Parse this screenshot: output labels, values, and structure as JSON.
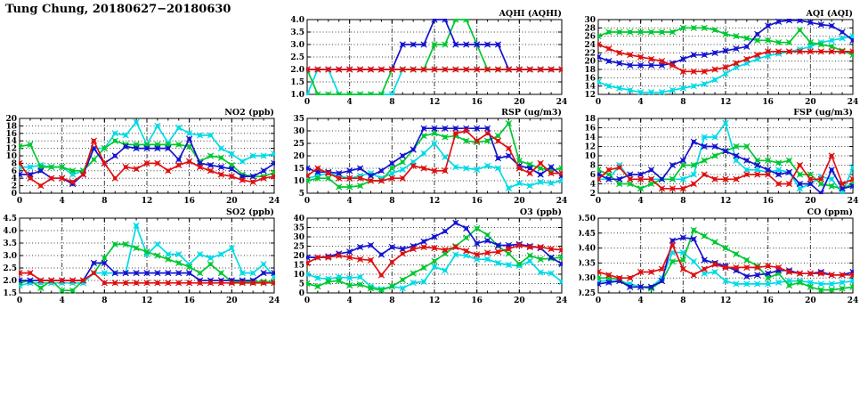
{
  "title": "Tung Chung, 20180627−20180630",
  "colors": {
    "red": "#e01010",
    "blue": "#1515cf",
    "green": "#00c832",
    "cyan": "#00dce6",
    "grid": "#404040",
    "frame": "#000000"
  },
  "hours": [
    0,
    1,
    2,
    3,
    4,
    5,
    6,
    7,
    8,
    9,
    10,
    11,
    12,
    13,
    14,
    15,
    16,
    17,
    18,
    19,
    20,
    21,
    22,
    23,
    24
  ],
  "chart_data": [
    {
      "type": "line",
      "title": "AQHI (AQHI)",
      "grid_position": {
        "row": 0,
        "col": 1
      },
      "xlim": [
        0,
        24
      ],
      "xticks": [
        0,
        4,
        8,
        12,
        16,
        20,
        24
      ],
      "x_minor_step": 1,
      "ylim": [
        1,
        4
      ],
      "ytick_step": 0.5,
      "ydecimals": 1,
      "grid": true,
      "series": [
        {
          "color": "cyan",
          "values": [
            1,
            2,
            2,
            1,
            1,
            1,
            1,
            1,
            1,
            2,
            2,
            2,
            2,
            2,
            2,
            2,
            2,
            2,
            2,
            2,
            2,
            2,
            2,
            2,
            2
          ]
        },
        {
          "color": "green",
          "values": [
            2,
            1,
            1,
            1,
            1,
            1,
            1,
            1,
            2,
            2,
            2,
            2,
            3,
            3,
            4,
            4,
            3,
            2,
            2,
            2,
            2,
            2,
            2,
            2,
            2
          ]
        },
        {
          "color": "blue",
          "values": [
            2,
            2,
            2,
            2,
            2,
            2,
            2,
            2,
            2,
            3,
            3,
            3,
            4,
            4,
            3,
            3,
            3,
            3,
            3,
            2,
            2,
            2,
            2,
            2,
            2
          ]
        },
        {
          "color": "red",
          "values": [
            2,
            2,
            2,
            2,
            2,
            2,
            2,
            2,
            2,
            2,
            2,
            2,
            2,
            2,
            2,
            2,
            2,
            2,
            2,
            2,
            2,
            2,
            2,
            2,
            2
          ]
        }
      ]
    },
    {
      "type": "line",
      "title": "AQI (AQI)",
      "grid_position": {
        "row": 0,
        "col": 2
      },
      "xlim": [
        0,
        24
      ],
      "xticks": [
        0,
        4,
        8,
        12,
        16,
        20,
        24
      ],
      "x_minor_step": 1,
      "ylim": [
        12,
        30
      ],
      "ytick_step": 2,
      "ydecimals": 0,
      "grid": true,
      "series": [
        {
          "color": "cyan",
          "values": [
            15,
            14,
            13.5,
            13,
            12.5,
            12.5,
            12.5,
            13,
            13.5,
            14,
            14.5,
            15.5,
            17,
            18.5,
            19.5,
            20.5,
            21.3,
            21.8,
            22.3,
            22.8,
            23.5,
            24.5,
            25,
            25.5,
            26
          ]
        },
        {
          "color": "green",
          "values": [
            26,
            27,
            27,
            27,
            27,
            27,
            27,
            27,
            28,
            28,
            28,
            27.5,
            26.5,
            26,
            25.5,
            25,
            25,
            24.5,
            24.5,
            27.5,
            24.5,
            24,
            23.5,
            22.5,
            21.5
          ]
        },
        {
          "color": "blue",
          "values": [
            21,
            20,
            19.5,
            19,
            19,
            19,
            19,
            19.5,
            20.5,
            21.5,
            21.5,
            22,
            22.5,
            23,
            23.5,
            26.5,
            28.5,
            29.5,
            29.8,
            29.8,
            29.3,
            28.8,
            28.5,
            27,
            25
          ]
        },
        {
          "color": "red",
          "values": [
            24,
            23,
            22,
            21.5,
            21,
            20.5,
            20,
            19,
            17.5,
            17.5,
            17.5,
            18,
            18.5,
            19.5,
            20.5,
            21.5,
            22.3,
            22.3,
            22.3,
            22.3,
            22.3,
            22.3,
            22.3,
            22.3,
            22.3
          ]
        }
      ]
    },
    {
      "type": "line",
      "title": "NO2 (ppb)",
      "grid_position": {
        "row": 1,
        "col": 0
      },
      "xlim": [
        0,
        24
      ],
      "xticks": [
        0,
        4,
        8,
        12,
        16,
        20,
        24
      ],
      "x_minor_step": 1,
      "ylim": [
        0,
        20
      ],
      "ytick_step": 2,
      "ydecimals": 0,
      "grid": true,
      "series": [
        {
          "color": "cyan",
          "values": [
            7,
            7,
            7.5,
            7,
            7,
            5,
            6,
            12,
            12,
            16,
            15.5,
            19,
            13,
            18,
            13.5,
            17.5,
            16,
            15.5,
            15.5,
            12,
            10.5,
            8.5,
            10,
            10,
            10.5
          ]
        },
        {
          "color": "green",
          "values": [
            12.5,
            13,
            7,
            7,
            7,
            6,
            6,
            9,
            12,
            14,
            13,
            13,
            13,
            13,
            13,
            13,
            12.5,
            8.5,
            10,
            9.5,
            7.5,
            5,
            4.5,
            4.5,
            5.5
          ]
        },
        {
          "color": "blue",
          "values": [
            5,
            5,
            6,
            4,
            4,
            2.5,
            5,
            12,
            8,
            10,
            12.5,
            12,
            12,
            12,
            12,
            9,
            14.5,
            8,
            7.5,
            7,
            6.5,
            4.5,
            4.5,
            6,
            8
          ]
        },
        {
          "color": "red",
          "values": [
            8,
            4,
            2,
            4,
            4,
            3,
            5,
            14,
            8,
            4,
            7,
            6.5,
            8,
            8,
            6,
            7.5,
            8.5,
            7,
            6,
            5,
            4.5,
            3.5,
            3,
            4,
            4.5
          ]
        }
      ]
    },
    {
      "type": "line",
      "title": "RSP (ug/m3)",
      "grid_position": {
        "row": 1,
        "col": 1
      },
      "xlim": [
        0,
        24
      ],
      "xticks": [
        0,
        4,
        8,
        12,
        16,
        20,
        24
      ],
      "x_minor_step": 1,
      "ylim": [
        5,
        35
      ],
      "ytick_step": 5,
      "ydecimals": 0,
      "grid": true,
      "series": [
        {
          "color": "cyan",
          "values": [
            11,
            12,
            13,
            12,
            11,
            12,
            13,
            11,
            13,
            14.5,
            17.5,
            21,
            25,
            19.5,
            15.5,
            15,
            14.5,
            16,
            15,
            7,
            9,
            8,
            9.5,
            9,
            10
          ]
        },
        {
          "color": "green",
          "values": [
            10,
            11,
            11,
            7.5,
            7.5,
            8,
            10,
            10,
            15,
            17.5,
            22.5,
            28,
            29,
            27.5,
            28,
            26,
            25.5,
            26,
            28,
            33,
            18,
            16.5,
            15,
            14,
            15
          ]
        },
        {
          "color": "blue",
          "values": [
            15,
            13.5,
            13.5,
            13,
            14,
            15,
            12,
            14,
            17,
            20,
            22.5,
            31,
            31,
            31,
            31,
            31,
            31,
            31,
            19,
            20,
            16,
            15,
            12.5,
            15.5,
            12
          ]
        },
        {
          "color": "red",
          "values": [
            12,
            15,
            13,
            11,
            11,
            11,
            10,
            10,
            11,
            11,
            16,
            15,
            14,
            14,
            29,
            30,
            26,
            29,
            26,
            23,
            15,
            13,
            17,
            13,
            13
          ]
        }
      ]
    },
    {
      "type": "line",
      "title": "FSP (ug/m3)",
      "grid_position": {
        "row": 1,
        "col": 2
      },
      "xlim": [
        0,
        24
      ],
      "xticks": [
        0,
        4,
        8,
        12,
        16,
        20,
        24
      ],
      "x_minor_step": 1,
      "ylim": [
        2,
        18
      ],
      "ytick_step": 2,
      "ydecimals": 0,
      "grid": true,
      "series": [
        {
          "color": "cyan",
          "values": [
            5,
            5,
            8,
            5,
            5,
            5,
            5,
            5,
            5,
            6,
            14,
            14,
            17,
            9,
            7,
            7,
            6.5,
            7,
            6.5,
            3,
            4,
            5.5,
            5,
            2,
            7.5
          ]
        },
        {
          "color": "green",
          "values": [
            7,
            6,
            4,
            4,
            3,
            4,
            5,
            5,
            8,
            8,
            9,
            10,
            11,
            12,
            12,
            9,
            9,
            8.5,
            9,
            6,
            6,
            4,
            3.5,
            3,
            4
          ]
        },
        {
          "color": "blue",
          "values": [
            6,
            5,
            5,
            6,
            6,
            7,
            5,
            8,
            9,
            13,
            12,
            12,
            11,
            10,
            9,
            8,
            7,
            6,
            6.5,
            4,
            4,
            2,
            7,
            3,
            3.5
          ]
        },
        {
          "color": "red",
          "values": [
            5,
            7,
            7.5,
            5,
            5,
            5,
            3,
            3,
            3,
            4,
            6,
            5,
            5,
            5,
            6,
            6,
            6,
            4,
            4,
            8,
            5,
            5,
            10,
            4,
            5
          ]
        }
      ]
    },
    {
      "type": "line",
      "title": "SO2 (ppb)",
      "grid_position": {
        "row": 2,
        "col": 0
      },
      "xlim": [
        0,
        24
      ],
      "xticks": [
        0,
        4,
        8,
        12,
        16,
        20,
        24
      ],
      "x_minor_step": 1,
      "ylim": [
        1.5,
        4.5
      ],
      "ytick_step": 0.5,
      "ydecimals": 1,
      "grid": true,
      "series": [
        {
          "color": "cyan",
          "values": [
            1.8,
            1.9,
            1.9,
            1.9,
            1.9,
            1.9,
            1.9,
            2.3,
            2.3,
            2.3,
            2.3,
            4.2,
            3.05,
            3.45,
            3.05,
            3.05,
            2.65,
            3.05,
            2.9,
            3.05,
            3.3,
            2.3,
            2.3,
            2.65,
            2.15
          ]
        },
        {
          "color": "green",
          "values": [
            1.9,
            2.0,
            1.7,
            2.0,
            1.6,
            1.6,
            2.0,
            2.3,
            2.9,
            3.45,
            3.45,
            3.3,
            3.15,
            3.0,
            2.85,
            2.7,
            2.55,
            2.3,
            2.65,
            2.3,
            1.95,
            1.95,
            1.95,
            1.95,
            1.95
          ]
        },
        {
          "color": "blue",
          "values": [
            2.0,
            2.0,
            2.0,
            2.0,
            2.0,
            2.0,
            2.0,
            2.7,
            2.7,
            2.3,
            2.3,
            2.3,
            2.3,
            2.3,
            2.3,
            2.3,
            2.3,
            2.0,
            2.0,
            2.0,
            2.0,
            2.0,
            2.0,
            2.3,
            2.3
          ]
        },
        {
          "color": "red",
          "values": [
            2.3,
            2.3,
            2.0,
            2.0,
            2.0,
            2.0,
            2.0,
            2.3,
            1.9,
            1.9,
            1.9,
            1.9,
            1.9,
            1.9,
            1.9,
            1.9,
            1.9,
            1.9,
            1.9,
            1.9,
            1.9,
            1.9,
            1.9,
            1.9,
            1.9
          ]
        }
      ]
    },
    {
      "type": "line",
      "title": "O3 (ppb)",
      "grid_position": {
        "row": 2,
        "col": 1
      },
      "xlim": [
        0,
        24
      ],
      "xticks": [
        0,
        4,
        8,
        12,
        16,
        20,
        24
      ],
      "x_minor_step": 1,
      "ylim": [
        0,
        40
      ],
      "ytick_step": 5,
      "ydecimals": 0,
      "grid": true,
      "series": [
        {
          "color": "cyan",
          "values": [
            10,
            8,
            7.5,
            8.5,
            8,
            8.5,
            3.5,
            2,
            3.5,
            2.5,
            5.5,
            6,
            14,
            12,
            20.5,
            20,
            18,
            18,
            16,
            15,
            14.5,
            17,
            11,
            10.5,
            6
          ]
        },
        {
          "color": "green",
          "values": [
            5,
            3.5,
            6,
            6.5,
            4,
            4.5,
            2.5,
            1.5,
            3.5,
            7,
            10.5,
            13.5,
            17,
            21,
            25,
            29.5,
            34.5,
            31,
            25,
            21,
            15.5,
            20,
            18,
            18.5,
            19
          ]
        },
        {
          "color": "blue",
          "values": [
            19,
            19,
            19.5,
            21,
            22,
            24.5,
            25.5,
            20.5,
            24.5,
            23.5,
            25,
            27.5,
            30,
            33,
            37.5,
            34.5,
            26.5,
            28,
            25.5,
            25.5,
            26,
            25,
            24,
            19,
            15.5
          ]
        },
        {
          "color": "red",
          "values": [
            16,
            19,
            19,
            20,
            19,
            18,
            17.5,
            9.5,
            16.5,
            21,
            23.5,
            24.5,
            24,
            23,
            24.5,
            22.5,
            20.5,
            21.5,
            22,
            23.5,
            25.5,
            24.5,
            24.5,
            23.5,
            23
          ]
        }
      ]
    },
    {
      "type": "line",
      "title": "CO (ppm)",
      "grid_position": {
        "row": 2,
        "col": 2
      },
      "xlim": [
        0,
        24
      ],
      "xticks": [
        0,
        4,
        8,
        12,
        16,
        20,
        24
      ],
      "x_minor_step": 1,
      "ylim": [
        0.25,
        0.5
      ],
      "ytick_step": 0.05,
      "ydecimals": 2,
      "grid": true,
      "series": [
        {
          "color": "cyan",
          "values": [
            0.29,
            0.29,
            0.29,
            0.28,
            0.27,
            0.27,
            0.3,
            0.385,
            0.385,
            0.355,
            0.315,
            0.32,
            0.29,
            0.28,
            0.28,
            0.28,
            0.28,
            0.285,
            0.29,
            0.29,
            0.285,
            0.28,
            0.28,
            0.285,
            0.29
          ]
        },
        {
          "color": "green",
          "values": [
            0.3,
            0.3,
            0.295,
            0.27,
            0.27,
            0.265,
            0.29,
            0.355,
            0.36,
            0.46,
            0.44,
            0.42,
            0.4,
            0.38,
            0.36,
            0.34,
            0.3,
            0.315,
            0.275,
            0.285,
            0.27,
            0.26,
            0.26,
            0.265,
            0.27
          ]
        },
        {
          "color": "blue",
          "values": [
            0.28,
            0.285,
            0.29,
            0.27,
            0.27,
            0.27,
            0.29,
            0.425,
            0.435,
            0.43,
            0.36,
            0.35,
            0.34,
            0.325,
            0.305,
            0.31,
            0.315,
            0.325,
            0.325,
            0.315,
            0.315,
            0.32,
            0.31,
            0.31,
            0.32
          ]
        },
        {
          "color": "red",
          "values": [
            0.32,
            0.31,
            0.3,
            0.3,
            0.32,
            0.32,
            0.33,
            0.41,
            0.33,
            0.31,
            0.33,
            0.345,
            0.335,
            0.335,
            0.335,
            0.335,
            0.34,
            0.335,
            0.32,
            0.315,
            0.315,
            0.315,
            0.31,
            0.31,
            0.31
          ]
        }
      ]
    }
  ]
}
